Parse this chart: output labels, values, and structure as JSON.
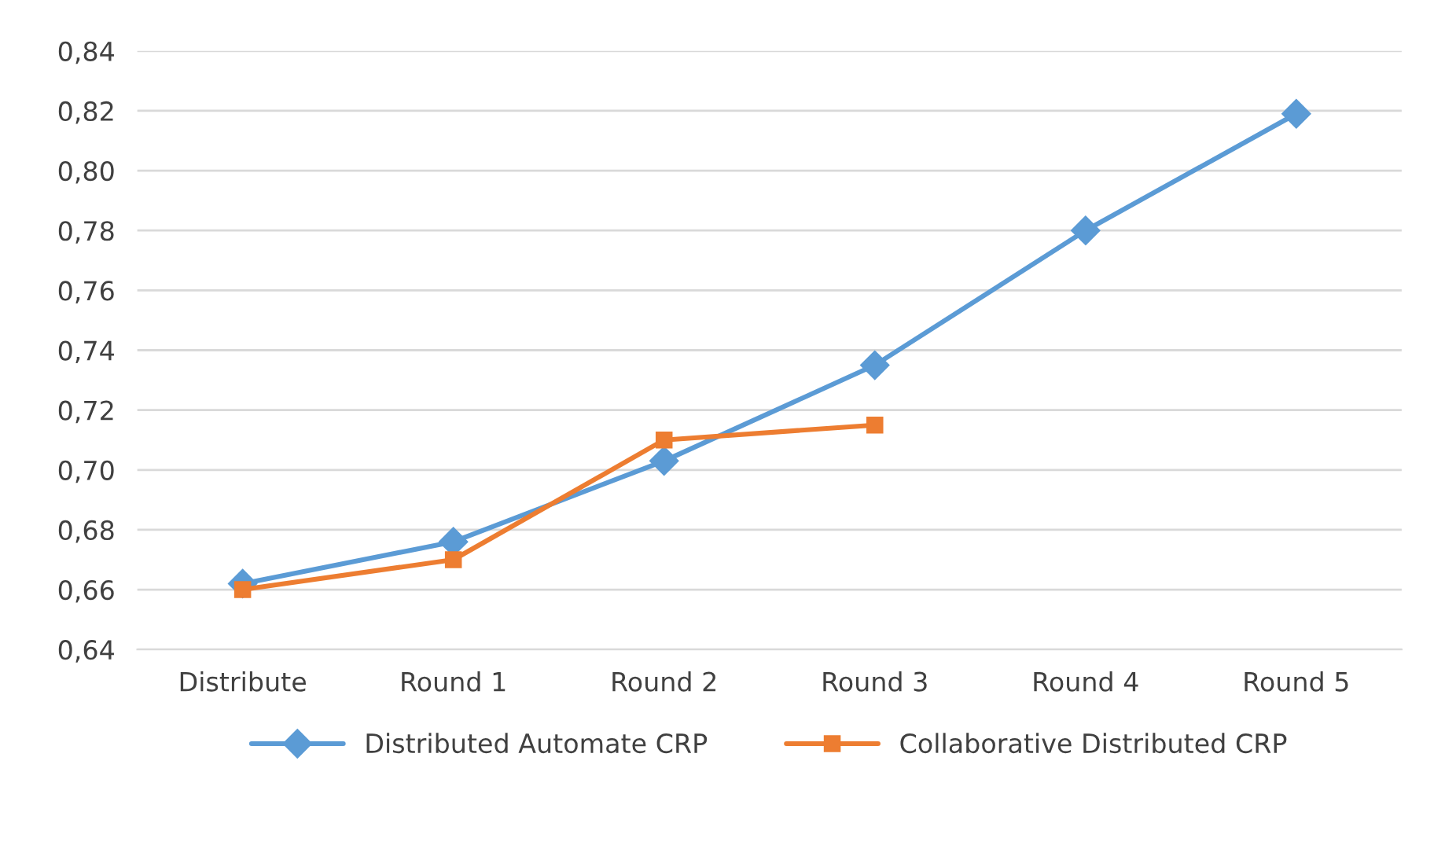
{
  "chart_data": {
    "type": "line",
    "categories": [
      "Distribute",
      "Round 1",
      "Round 2",
      "Round 3",
      "Round 4",
      "Round 5"
    ],
    "series": [
      {
        "name": "Distributed Automate CRP",
        "color": "#5b9bd5",
        "marker": "diamond",
        "values": [
          0.662,
          0.676,
          0.703,
          0.735,
          0.78,
          0.819
        ]
      },
      {
        "name": "Collaborative Distributed CRP",
        "color": "#ed7d31",
        "marker": "square",
        "values": [
          0.66,
          0.67,
          0.71,
          0.715,
          null,
          null
        ]
      }
    ],
    "ylim": [
      0.64,
      0.84
    ],
    "yticks": [
      {
        "value": 0.64,
        "label": "0,64"
      },
      {
        "value": 0.66,
        "label": "0,66"
      },
      {
        "value": 0.68,
        "label": "0,68"
      },
      {
        "value": 0.7,
        "label": "0,70"
      },
      {
        "value": 0.72,
        "label": "0,72"
      },
      {
        "value": 0.74,
        "label": "0,74"
      },
      {
        "value": 0.76,
        "label": "0,76"
      },
      {
        "value": 0.78,
        "label": "0,78"
      },
      {
        "value": 0.8,
        "label": "0,80"
      },
      {
        "value": 0.82,
        "label": "0,82"
      },
      {
        "value": 0.84,
        "label": "0,84"
      }
    ],
    "grid": "y",
    "legend": "bottom",
    "line_style": "solid"
  }
}
